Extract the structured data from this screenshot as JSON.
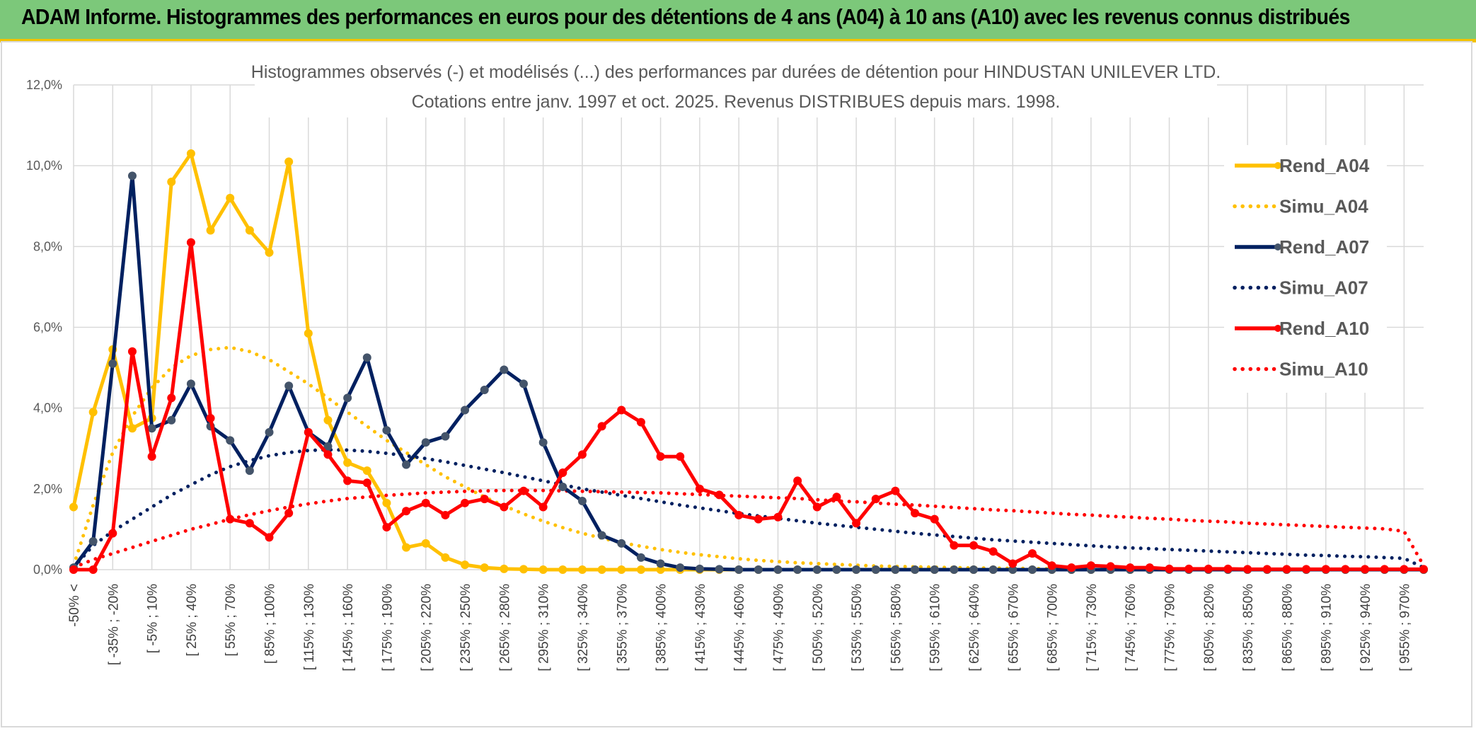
{
  "header": {
    "title": "ADAM Informe. Histogrammes des performances en euros pour des détentions de 4 ans (A04) à 10 ans (A10) avec les revenus connus distribués"
  },
  "colors": {
    "header_bg": "#7cc87a",
    "accent": "#f2c200",
    "rend_a04": "#ffc000",
    "rend_a07": "#002060",
    "rend_a10": "#ff0000",
    "grid": "#d9d9d9"
  },
  "chart_data": {
    "type": "line",
    "title": "Histogrammes observés (-) et modélisés (...) des performances par durées de détention pour HINDUSTAN UNILEVER LTD.",
    "subtitle": "Cotations entre janv. 1997 et oct. 2025. Revenus DISTRIBUES depuis mars. 1998.",
    "xlabel": "",
    "ylabel": "",
    "ylim": [
      0,
      12
    ],
    "y_ticks": [
      "0,0%",
      "2,0%",
      "4,0%",
      "6,0%",
      "8,0%",
      "10,0%",
      "12,0%"
    ],
    "x_tick_labels": [
      "-50% <",
      "[ -35% ; -20%",
      "[ -5% ; 10%",
      "[ 25% ; 40%",
      "[ 55% ; 70%",
      "[ 85% ; 100%",
      "[ 115% ; 130%",
      "[ 145% ; 160%",
      "[ 175% ; 190%",
      "[ 205% ; 220%",
      "[ 235% ; 250%",
      "[ 265% ; 280%",
      "[ 295% ; 310%",
      "[ 325% ; 340%",
      "[ 355% ; 370%",
      "[ 385% ; 400%",
      "[ 415% ; 430%",
      "[ 445% ; 460%",
      "[ 475% ; 490%",
      "[ 505% ; 520%",
      "[ 535% ; 550%",
      "[ 565% ; 580%",
      "[ 595% ; 610%",
      "[ 625% ; 640%",
      "[ 655% ; 670%",
      "[ 685% ; 700%",
      "[ 715% ; 730%",
      "[ 745% ; 760%",
      "[ 775% ; 790%",
      "[ 805% ; 820%",
      "[ 835% ; 850%",
      "[ 865% ; 880%",
      "[ 895% ; 910%",
      "[ 925% ; 940%",
      "[ 955% ; 970%"
    ],
    "n_bins": 70,
    "legend_position": "right",
    "grid": true,
    "series": [
      {
        "name": "Rend_A04",
        "style": "solid",
        "markers": true,
        "values": [
          1.55,
          3.9,
          5.45,
          3.5,
          3.75,
          9.6,
          10.3,
          8.4,
          9.2,
          8.4,
          7.85,
          10.1,
          5.85,
          3.7,
          2.65,
          2.45,
          1.65,
          0.55,
          0.65,
          0.3,
          0.12,
          0.05,
          0.02,
          0.01,
          0,
          0,
          0,
          0,
          0,
          0,
          0,
          0,
          0,
          0,
          0,
          0,
          0,
          0,
          0,
          0,
          0,
          0,
          0,
          0,
          0,
          0,
          0,
          0,
          0,
          0,
          0,
          0,
          0,
          0,
          0,
          0,
          0,
          0,
          0,
          0,
          0,
          0,
          0,
          0,
          0,
          0,
          0,
          0,
          0,
          0
        ]
      },
      {
        "name": "Simu_A04",
        "style": "dotted",
        "markers": false,
        "values": [
          0.1,
          1.6,
          2.9,
          3.8,
          4.5,
          5.0,
          5.3,
          5.45,
          5.5,
          5.4,
          5.2,
          4.9,
          4.6,
          4.25,
          3.9,
          3.55,
          3.2,
          2.9,
          2.6,
          2.3,
          2.05,
          1.8,
          1.58,
          1.38,
          1.2,
          1.04,
          0.9,
          0.78,
          0.67,
          0.58,
          0.5,
          0.43,
          0.37,
          0.32,
          0.27,
          0.23,
          0.2,
          0.17,
          0.15,
          0.13,
          0.11,
          0.09,
          0.08,
          0.07,
          0.06,
          0.05,
          0.04,
          0.04,
          0.03,
          0.03,
          0.02,
          0.02,
          0.02,
          0.01,
          0.01,
          0.01,
          0.01,
          0.01,
          0.01,
          0,
          0,
          0,
          0,
          0,
          0,
          0,
          0,
          0,
          0,
          0
        ]
      },
      {
        "name": "Rend_A07",
        "style": "solid",
        "markers": true,
        "values": [
          0.05,
          0.7,
          5.1,
          9.75,
          3.5,
          3.7,
          4.6,
          3.55,
          3.2,
          2.45,
          3.4,
          4.55,
          3.4,
          3.05,
          4.25,
          5.25,
          3.45,
          2.6,
          3.15,
          3.3,
          3.95,
          4.45,
          4.95,
          4.6,
          3.15,
          2.05,
          1.7,
          0.85,
          0.65,
          0.3,
          0.15,
          0.05,
          0.02,
          0.01,
          0,
          0,
          0,
          0,
          0,
          0,
          0,
          0,
          0,
          0,
          0,
          0,
          0,
          0,
          0,
          0,
          0,
          0,
          0,
          0,
          0,
          0,
          0,
          0,
          0,
          0,
          0,
          0,
          0,
          0,
          0,
          0,
          0,
          0,
          0,
          0
        ]
      },
      {
        "name": "Simu_A07",
        "style": "dotted",
        "markers": false,
        "values": [
          0.05,
          0.6,
          0.95,
          1.25,
          1.55,
          1.85,
          2.1,
          2.35,
          2.55,
          2.7,
          2.82,
          2.9,
          2.95,
          2.97,
          2.96,
          2.93,
          2.88,
          2.82,
          2.75,
          2.67,
          2.58,
          2.49,
          2.4,
          2.3,
          2.2,
          2.1,
          2.0,
          1.92,
          1.84,
          1.76,
          1.68,
          1.6,
          1.53,
          1.46,
          1.39,
          1.33,
          1.27,
          1.21,
          1.15,
          1.1,
          1.05,
          1.0,
          0.95,
          0.9,
          0.86,
          0.82,
          0.78,
          0.74,
          0.71,
          0.68,
          0.65,
          0.62,
          0.59,
          0.56,
          0.54,
          0.52,
          0.5,
          0.48,
          0.46,
          0.44,
          0.42,
          0.4,
          0.38,
          0.36,
          0.35,
          0.33,
          0.32,
          0.3,
          0.28,
          0.05
        ]
      },
      {
        "name": "Rend_A10",
        "style": "solid",
        "markers": true,
        "values": [
          0.0,
          0.0,
          0.9,
          5.4,
          2.8,
          4.25,
          8.1,
          3.75,
          1.25,
          1.15,
          0.8,
          1.4,
          3.4,
          2.85,
          2.2,
          2.15,
          1.05,
          1.45,
          1.65,
          1.35,
          1.65,
          1.75,
          1.55,
          1.95,
          1.55,
          2.4,
          2.85,
          3.55,
          3.95,
          3.65,
          2.8,
          2.8,
          2.0,
          1.85,
          1.35,
          1.25,
          1.3,
          2.2,
          1.55,
          1.8,
          1.15,
          1.75,
          1.95,
          1.4,
          1.25,
          0.6,
          0.6,
          0.45,
          0.15,
          0.4,
          0.1,
          0.05,
          0.1,
          0.08,
          0.05,
          0.05,
          0.02,
          0.02,
          0.02,
          0.02,
          0.01,
          0.01,
          0.01,
          0.01,
          0.01,
          0.01,
          0.01,
          0.01,
          0.01,
          0.01
        ]
      },
      {
        "name": "Simu_A10",
        "style": "dotted",
        "markers": false,
        "values": [
          0.05,
          0.25,
          0.4,
          0.55,
          0.7,
          0.85,
          1.0,
          1.12,
          1.25,
          1.36,
          1.46,
          1.55,
          1.63,
          1.7,
          1.76,
          1.8,
          1.84,
          1.87,
          1.9,
          1.92,
          1.94,
          1.95,
          1.96,
          1.96,
          1.96,
          1.95,
          1.94,
          1.93,
          1.92,
          1.91,
          1.9,
          1.88,
          1.86,
          1.84,
          1.82,
          1.8,
          1.78,
          1.76,
          1.73,
          1.7,
          1.68,
          1.65,
          1.62,
          1.6,
          1.57,
          1.54,
          1.51,
          1.48,
          1.46,
          1.43,
          1.4,
          1.37,
          1.35,
          1.32,
          1.3,
          1.27,
          1.25,
          1.22,
          1.2,
          1.18,
          1.15,
          1.13,
          1.11,
          1.09,
          1.07,
          1.05,
          1.03,
          1.01,
          0.95,
          0.1
        ]
      }
    ]
  }
}
